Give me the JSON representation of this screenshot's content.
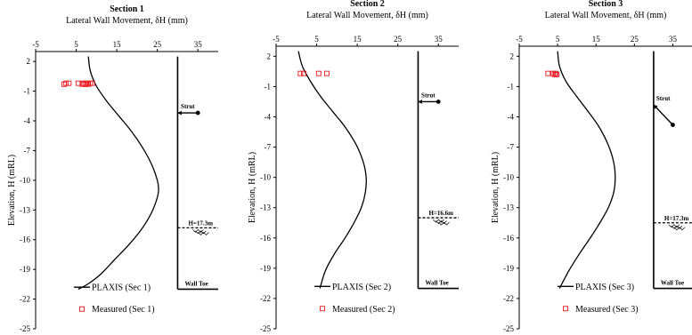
{
  "chart_data": [
    {
      "type": "line",
      "title": "Section 1",
      "xlabel": "Lateral Wall Movement, δH (mm)",
      "ylabel": "Elevation, H (mRL)",
      "xlim": [
        -5,
        40
      ],
      "ylim": [
        -25,
        3
      ],
      "xticks": [
        -5,
        5,
        15,
        25,
        35
      ],
      "yticks": [
        2,
        -1,
        -4,
        -7,
        -10,
        -13,
        -16,
        -19,
        -22,
        -25
      ],
      "grid": false,
      "legend_position": "bottom-left",
      "series": [
        {
          "name": "PLAXIS (Sec 1)",
          "kind": "line",
          "x": [
            8.0,
            8.5,
            10.0,
            12.5,
            15.5,
            18.5,
            21.5,
            23.7,
            25.0,
            25.3,
            24.8,
            23.3,
            21.0,
            18.0,
            14.5,
            11.0,
            7.8,
            5.5
          ],
          "y": [
            2.5,
            1.0,
            -0.5,
            -2.0,
            -3.5,
            -5.0,
            -6.8,
            -8.5,
            -10.0,
            -11.0,
            -12.0,
            -13.5,
            -15.0,
            -16.5,
            -18.0,
            -19.5,
            -20.5,
            -21.0
          ]
        },
        {
          "name": "Measured (Sec 1)",
          "kind": "marker",
          "x": [
            2.0,
            2.5,
            3.2,
            5.5,
            6.5,
            6.8,
            7.2,
            7.6,
            8.0,
            8.5,
            9.0
          ],
          "y": [
            -0.3,
            -0.2,
            -0.2,
            -0.2,
            -0.3,
            -0.2,
            -0.3,
            -0.2,
            -0.3,
            -0.2,
            -0.2
          ]
        }
      ],
      "wall": {
        "x": 30,
        "top": 2.5,
        "toe": -21,
        "toe_label": "Wall Toe"
      },
      "strut": {
        "label": "Strut",
        "x_end": 35,
        "y_end": -3.2,
        "y_wall": -3.2
      },
      "excavation": {
        "label": "H=17.3m",
        "elevation": -14.8
      }
    },
    {
      "type": "line",
      "title": "Section 2",
      "xlabel": "Lateral Wall Movement, δH (mm)",
      "ylabel": "Elevation, H (mRL)",
      "xlim": [
        -5,
        40
      ],
      "ylim": [
        -25,
        3
      ],
      "xticks": [
        -5,
        5,
        15,
        25,
        35
      ],
      "yticks": [
        2,
        -1,
        -4,
        -7,
        -10,
        -13,
        -16,
        -19,
        -22,
        -25
      ],
      "grid": false,
      "legend_position": "bottom-left",
      "series": [
        {
          "name": "PLAXIS (Sec 2)",
          "kind": "line",
          "x": [
            0.5,
            1.5,
            3.5,
            6.0,
            9.0,
            12.0,
            14.8,
            16.5,
            17.2,
            17.0,
            16.0,
            14.2,
            12.0,
            9.5,
            7.2,
            5.8
          ],
          "y": [
            2.5,
            1.0,
            -0.5,
            -2.0,
            -3.5,
            -5.0,
            -6.8,
            -8.5,
            -10.0,
            -11.5,
            -13.0,
            -14.5,
            -16.0,
            -17.5,
            -19.2,
            -21.0
          ]
        },
        {
          "name": "Measured (Sec 2)",
          "kind": "marker",
          "x": [
            1.0,
            1.8,
            5.5,
            7.5
          ],
          "y": [
            0.3,
            0.3,
            0.3,
            0.3
          ]
        }
      ],
      "wall": {
        "x": 30,
        "top": 2.5,
        "toe": -21,
        "toe_label": "Wall Toe"
      },
      "strut": {
        "label": "Strut",
        "x_end": 35,
        "y_end": -2.5,
        "y_wall": -2.5
      },
      "excavation": {
        "label": "H=16.6m",
        "elevation": -14.0
      }
    },
    {
      "type": "line",
      "title": "Section 3",
      "xlabel": "Lateral Wall Movement, δH (mm)",
      "ylabel": "Elevation, H (mRL)",
      "xlim": [
        -5,
        40
      ],
      "ylim": [
        -25,
        3
      ],
      "xticks": [
        -5,
        5,
        15,
        25,
        35
      ],
      "yticks": [
        2,
        -1,
        -4,
        -7,
        -10,
        -13,
        -16,
        -19,
        -22,
        -25
      ],
      "grid": false,
      "legend_position": "bottom-left",
      "series": [
        {
          "name": "PLAXIS (Sec 3)",
          "kind": "line",
          "x": [
            5.0,
            5.5,
            7.2,
            10.0,
            13.0,
            15.8,
            18.2,
            19.6,
            20.0,
            19.6,
            18.2,
            16.0,
            13.5,
            10.8,
            8.0,
            5.5
          ],
          "y": [
            2.5,
            1.0,
            -0.5,
            -2.0,
            -3.5,
            -5.0,
            -6.8,
            -8.5,
            -10.0,
            -11.5,
            -13.0,
            -14.5,
            -16.0,
            -17.5,
            -19.2,
            -21.0
          ]
        },
        {
          "name": "Measured (Sec 3)",
          "kind": "marker",
          "x": [
            2.5,
            3.8,
            4.2,
            4.5,
            4.8
          ],
          "y": [
            0.3,
            0.3,
            0.2,
            0.3,
            0.2
          ]
        }
      ],
      "wall": {
        "x": 30,
        "top": 2.5,
        "toe": -21,
        "toe_label": "Wall Toe"
      },
      "strut": {
        "label": "Strut",
        "x_end": 35,
        "y_end": -4.8,
        "y_wall": -2.8
      },
      "excavation": {
        "label": "H=17.3m",
        "elevation": -14.5
      }
    }
  ]
}
